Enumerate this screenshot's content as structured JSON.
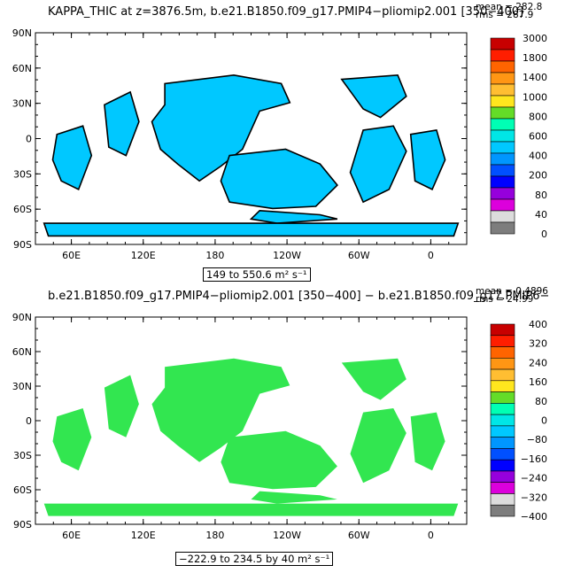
{
  "chart_data": [
    {
      "type": "heatmap",
      "title": "KAPPA_THIC at z=3876.5m, b.e21.B1850.f09_g17.PMIP4−pliomip2.001 [350−400]",
      "stats": {
        "mean": "mean = 282.8",
        "rms": "rms = 287.9"
      },
      "range_label": "149 to 550.6 m² s⁻¹",
      "x_ticks": [
        "60E",
        "120E",
        "180",
        "120W",
        "60W",
        "0"
      ],
      "y_ticks": [
        "90N",
        "60N",
        "30N",
        "0",
        "30S",
        "60S",
        "90S"
      ],
      "colorbar": {
        "labels": [
          "3000",
          "1800",
          "1400",
          "1000",
          "800",
          "600",
          "400",
          "200",
          "80",
          "40",
          "0"
        ],
        "colors": [
          "#c80000",
          "#ff1e00",
          "#ff6400",
          "#ff9614",
          "#ffbe32",
          "#ffe61e",
          "#64dc28",
          "#00ffb4",
          "#00e6e6",
          "#00c8ff",
          "#0096ff",
          "#0050ff",
          "#0000ff",
          "#9600dc",
          "#dc00dc",
          "#dcdcdc",
          "#7d7d7d"
        ]
      },
      "field_color": "#00c8ff",
      "coastline": true
    },
    {
      "type": "heatmap",
      "title": "b.e21.B1850.f09_g17.PMIP4−pliomip2.001 [350−400] − b.e21.B1850.f09_g17.PMIP6−",
      "stats": {
        "mean": "mean = 0.4896",
        "rms": "rms = 24.99"
      },
      "range_label": "−222.9 to 234.5 by 40 m² s⁻¹",
      "x_ticks": [
        "60E",
        "120E",
        "180",
        "120W",
        "60W",
        "0"
      ],
      "y_ticks": [
        "90N",
        "60N",
        "30N",
        "0",
        "30S",
        "60S",
        "90S"
      ],
      "colorbar": {
        "labels": [
          "400",
          "320",
          "240",
          "160",
          "80",
          "0",
          "−80",
          "−160",
          "−240",
          "−320",
          "−400"
        ],
        "colors": [
          "#c80000",
          "#ff1e00",
          "#ff6400",
          "#ff9614",
          "#ffbe32",
          "#ffe61e",
          "#64dc28",
          "#00ffb4",
          "#00e6e6",
          "#00c8ff",
          "#0096ff",
          "#0050ff",
          "#0000ff",
          "#9600dc",
          "#dc00dc",
          "#dcdcdc",
          "#7d7d7d"
        ]
      },
      "field_color": "#32e650",
      "coastline": false
    }
  ]
}
